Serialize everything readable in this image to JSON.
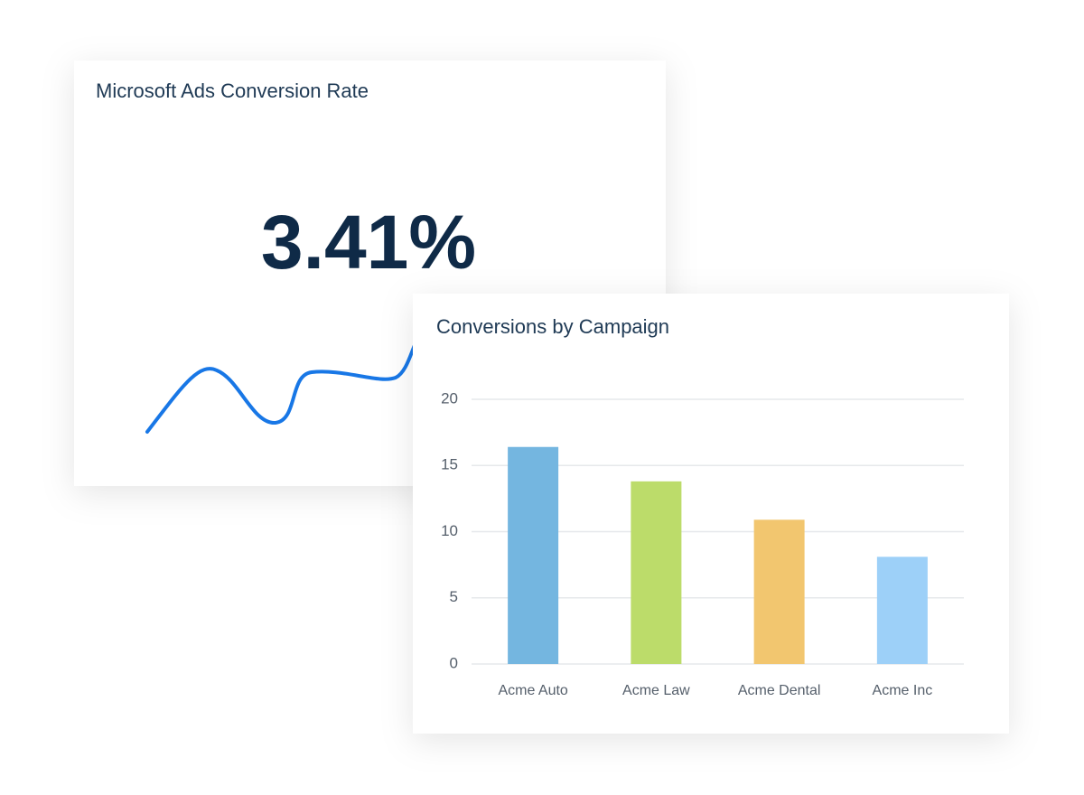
{
  "chart_data": [
    {
      "type": "kpi",
      "title": "Microsoft Ads Conversion Rate",
      "values": [
        3.41
      ],
      "value_labels": [
        "3.41%"
      ]
    },
    {
      "type": "bar",
      "title": "Conversions by Campaign",
      "categories": [
        "Acme Auto",
        "Acme Law",
        "Acme Dental",
        "Acme Inc"
      ],
      "values": [
        16.4,
        13.8,
        10.9,
        8.1
      ],
      "colors": [
        "#74b6e0",
        "#bcdc6a",
        "#f2c66f",
        "#9dd0f8"
      ],
      "ylim": [
        0,
        20
      ],
      "yticks": [
        0,
        5,
        10,
        15,
        20
      ],
      "grid": true
    }
  ]
}
